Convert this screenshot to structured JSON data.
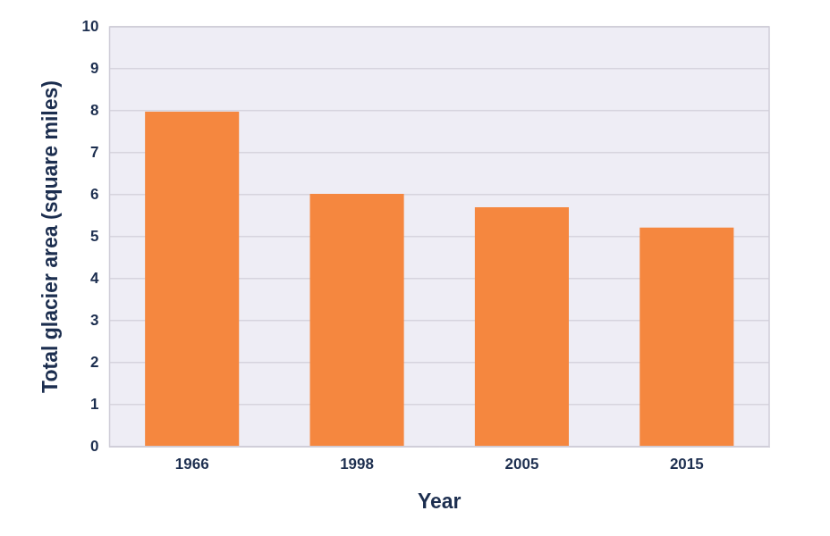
{
  "chart_data": {
    "type": "bar",
    "x_label": "Year",
    "y_label": "Total glacier area (square miles)",
    "categories": [
      "1966",
      "1998",
      "2005",
      "2015"
    ],
    "values": [
      7.98,
      6.02,
      5.7,
      5.22
    ],
    "color": "#f5873f",
    "ylim": [
      0,
      10
    ],
    "yticks": [
      0,
      1,
      2,
      3,
      4,
      5,
      6,
      7,
      8,
      9,
      10
    ],
    "grid": true
  }
}
